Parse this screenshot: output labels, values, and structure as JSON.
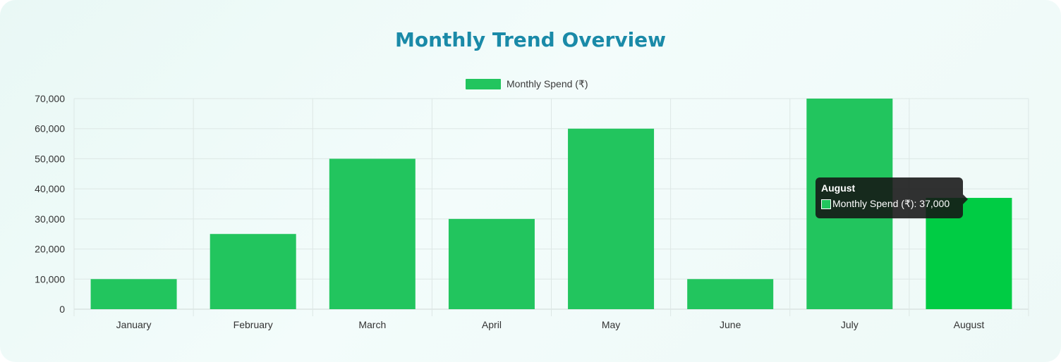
{
  "chart_data": {
    "type": "bar",
    "title": "Monthly Trend Overview",
    "categories": [
      "January",
      "February",
      "March",
      "April",
      "May",
      "June",
      "July",
      "August"
    ],
    "series": [
      {
        "name": "Monthly Spend (₹)",
        "values": [
          10000,
          25000,
          50000,
          30000,
          60000,
          10000,
          70000,
          37000
        ]
      }
    ],
    "ylim": [
      0,
      70000
    ],
    "yticks": [
      "0",
      "10,000",
      "20,000",
      "30,000",
      "40,000",
      "50,000",
      "60,000",
      "70,000"
    ],
    "xlabel": "",
    "ylabel": "",
    "grid": true,
    "legend_position": "top-center",
    "colors": {
      "bar": "#22c55e",
      "bar_hover": "#00cc44",
      "grid": "#dde7e5",
      "title": "#1a8aa8"
    },
    "tooltip": {
      "title": "August",
      "label": "Monthly Spend (₹): 37,000",
      "active_index": 7
    }
  }
}
